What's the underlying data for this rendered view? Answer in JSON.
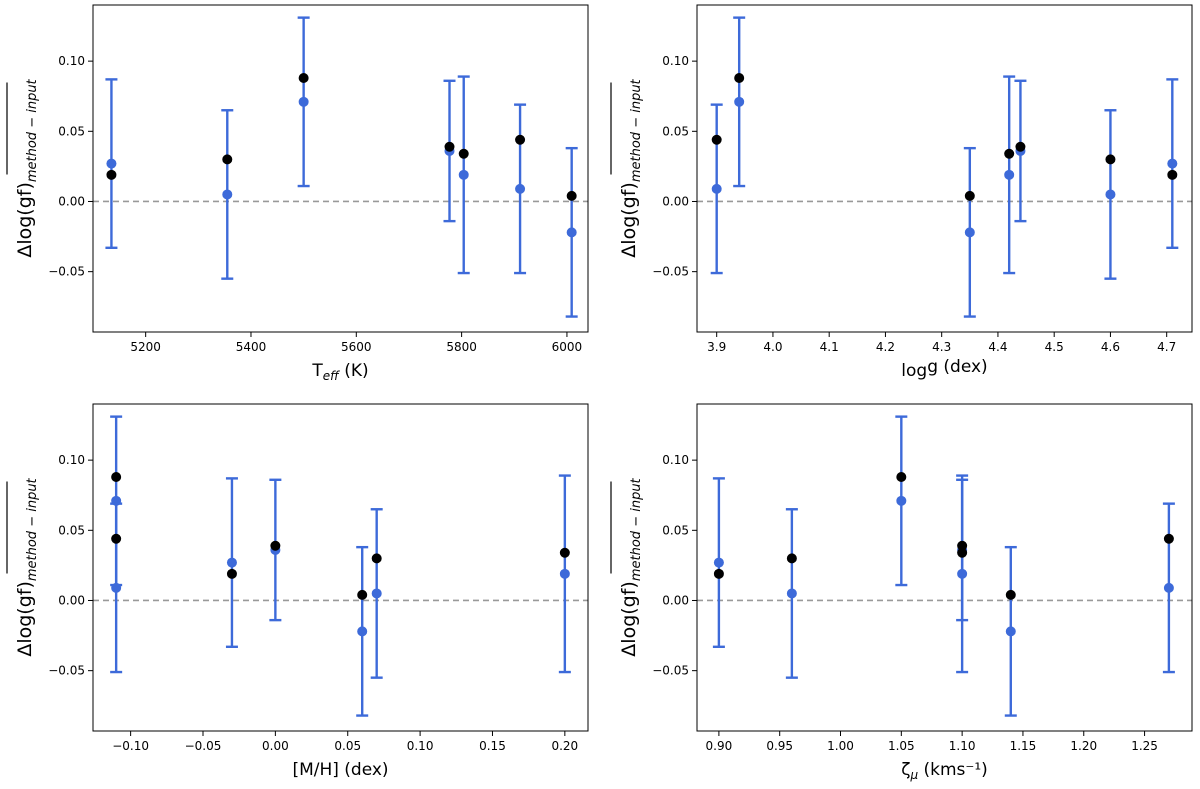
{
  "colors": {
    "method_marker": "#000000",
    "input_marker": "#3d6ad9",
    "errorbar": "#3d6ad9",
    "zero_line": "#999999"
  },
  "chart_data": [
    {
      "type": "scatter",
      "xlabel_base": "T",
      "xlabel_sub": "eff",
      "xlabel_tail": " (K)",
      "ylabel_main": "Δlog(gf)",
      "ylabel_sub": "method − input",
      "xlim": [
        5100,
        6040
      ],
      "ylim": [
        -0.093,
        0.14
      ],
      "xticks": [
        5200,
        5400,
        5600,
        5800,
        6000
      ],
      "xtick_labels": [
        "5200",
        "5400",
        "5600",
        "5800",
        "6000"
      ],
      "yticks": [
        -0.05,
        0.0,
        0.05,
        0.1
      ],
      "ytick_labels": [
        "−0.05",
        "0.00",
        "0.05",
        "0.10"
      ],
      "zero_line": 0.0,
      "points": [
        {
          "x": 5135,
          "method": 0.019,
          "input": 0.027,
          "err_low": -0.033,
          "err_high": 0.087
        },
        {
          "x": 5355,
          "method": 0.03,
          "input": 0.005,
          "err_low": -0.055,
          "err_high": 0.065
        },
        {
          "x": 5500,
          "method": 0.088,
          "input": 0.071,
          "err_low": 0.011,
          "err_high": 0.131
        },
        {
          "x": 5777,
          "method": 0.039,
          "input": 0.036,
          "err_low": -0.014,
          "err_high": 0.086
        },
        {
          "x": 5804,
          "method": 0.034,
          "input": 0.019,
          "err_low": -0.051,
          "err_high": 0.089
        },
        {
          "x": 5911,
          "method": 0.044,
          "input": 0.009,
          "err_low": -0.051,
          "err_high": 0.069
        },
        {
          "x": 6009,
          "method": 0.004,
          "input": -0.022,
          "err_low": -0.082,
          "err_high": 0.038
        }
      ]
    },
    {
      "type": "scatter",
      "xlabel_base": "log",
      "xlabel_sub": "",
      "xlabel_tail": "g (dex)",
      "ylabel_main": "Δlog(gf)",
      "ylabel_sub": "method − input",
      "xlim": [
        3.865,
        4.745
      ],
      "ylim": [
        -0.093,
        0.14
      ],
      "xticks": [
        3.9,
        4.0,
        4.1,
        4.2,
        4.3,
        4.4,
        4.5,
        4.6,
        4.7
      ],
      "xtick_labels": [
        "3.9",
        "4.0",
        "4.1",
        "4.2",
        "4.3",
        "4.4",
        "4.5",
        "4.6",
        "4.7"
      ],
      "yticks": [
        -0.05,
        0.0,
        0.05,
        0.1
      ],
      "ytick_labels": [
        "−0.05",
        "0.00",
        "0.05",
        "0.10"
      ],
      "zero_line": 0.0,
      "points": [
        {
          "x": 3.9,
          "method": 0.044,
          "input": 0.009,
          "err_low": -0.051,
          "err_high": 0.069
        },
        {
          "x": 3.94,
          "method": 0.088,
          "input": 0.071,
          "err_low": 0.011,
          "err_high": 0.131
        },
        {
          "x": 4.35,
          "method": 0.004,
          "input": -0.022,
          "err_low": -0.082,
          "err_high": 0.038
        },
        {
          "x": 4.42,
          "method": 0.034,
          "input": 0.019,
          "err_low": -0.051,
          "err_high": 0.089
        },
        {
          "x": 4.44,
          "method": 0.039,
          "input": 0.036,
          "err_low": -0.014,
          "err_high": 0.086
        },
        {
          "x": 4.6,
          "method": 0.03,
          "input": 0.005,
          "err_low": -0.055,
          "err_high": 0.065
        },
        {
          "x": 4.71,
          "method": 0.019,
          "input": 0.027,
          "err_low": -0.033,
          "err_high": 0.087
        }
      ]
    },
    {
      "type": "scatter",
      "xlabel_base": "[M/H] (dex)",
      "xlabel_sub": "",
      "xlabel_tail": "",
      "ylabel_main": "Δlog(gf)",
      "ylabel_sub": "method − input",
      "xlim": [
        -0.126,
        0.216
      ],
      "ylim": [
        -0.093,
        0.14
      ],
      "xticks": [
        -0.1,
        -0.05,
        0.0,
        0.05,
        0.1,
        0.15,
        0.2
      ],
      "xtick_labels": [
        "−0.10",
        "−0.05",
        "0.00",
        "0.05",
        "0.10",
        "0.15",
        "0.20"
      ],
      "yticks": [
        -0.05,
        0.0,
        0.05,
        0.1
      ],
      "ytick_labels": [
        "−0.05",
        "0.00",
        "0.05",
        "0.10"
      ],
      "zero_line": 0.0,
      "points": [
        {
          "x": -0.11,
          "method": 0.088,
          "input": 0.071,
          "err_low": 0.011,
          "err_high": 0.131
        },
        {
          "x": -0.11,
          "method": 0.044,
          "input": 0.009,
          "err_low": -0.051,
          "err_high": 0.069
        },
        {
          "x": -0.03,
          "method": 0.019,
          "input": 0.027,
          "err_low": -0.033,
          "err_high": 0.087
        },
        {
          "x": 0.0,
          "method": 0.039,
          "input": 0.036,
          "err_low": -0.014,
          "err_high": 0.086
        },
        {
          "x": 0.06,
          "method": 0.004,
          "input": -0.022,
          "err_low": -0.082,
          "err_high": 0.038
        },
        {
          "x": 0.07,
          "method": 0.03,
          "input": 0.005,
          "err_low": -0.055,
          "err_high": 0.065
        },
        {
          "x": 0.2,
          "method": 0.034,
          "input": 0.019,
          "err_low": -0.051,
          "err_high": 0.089
        }
      ]
    },
    {
      "type": "scatter",
      "xlabel_base": "ζ",
      "xlabel_sub": "μ",
      "xlabel_tail": " (kms⁻¹)",
      "ylabel_main": "Δlog(gf)",
      "ylabel_sub": "method − input",
      "xlim": [
        0.882,
        1.289
      ],
      "ylim": [
        -0.093,
        0.14
      ],
      "xticks": [
        0.9,
        0.95,
        1.0,
        1.05,
        1.1,
        1.15,
        1.2,
        1.25
      ],
      "xtick_labels": [
        "0.90",
        "0.95",
        "1.00",
        "1.05",
        "1.10",
        "1.15",
        "1.20",
        "1.25"
      ],
      "yticks": [
        -0.05,
        0.0,
        0.05,
        0.1
      ],
      "ytick_labels": [
        "−0.05",
        "0.00",
        "0.05",
        "0.10"
      ],
      "zero_line": 0.0,
      "points": [
        {
          "x": 0.9,
          "method": 0.019,
          "input": 0.027,
          "err_low": -0.033,
          "err_high": 0.087
        },
        {
          "x": 0.96,
          "method": 0.03,
          "input": 0.005,
          "err_low": -0.055,
          "err_high": 0.065
        },
        {
          "x": 1.05,
          "method": 0.088,
          "input": 0.071,
          "err_low": 0.011,
          "err_high": 0.131
        },
        {
          "x": 1.1,
          "method": 0.039,
          "input": 0.036,
          "err_low": -0.014,
          "err_high": 0.086
        },
        {
          "x": 1.1,
          "method": 0.034,
          "input": 0.019,
          "err_low": -0.051,
          "err_high": 0.089
        },
        {
          "x": 1.14,
          "method": 0.004,
          "input": -0.022,
          "err_low": -0.082,
          "err_high": 0.038
        },
        {
          "x": 1.27,
          "method": 0.044,
          "input": 0.009,
          "err_low": -0.051,
          "err_high": 0.069
        }
      ]
    }
  ]
}
